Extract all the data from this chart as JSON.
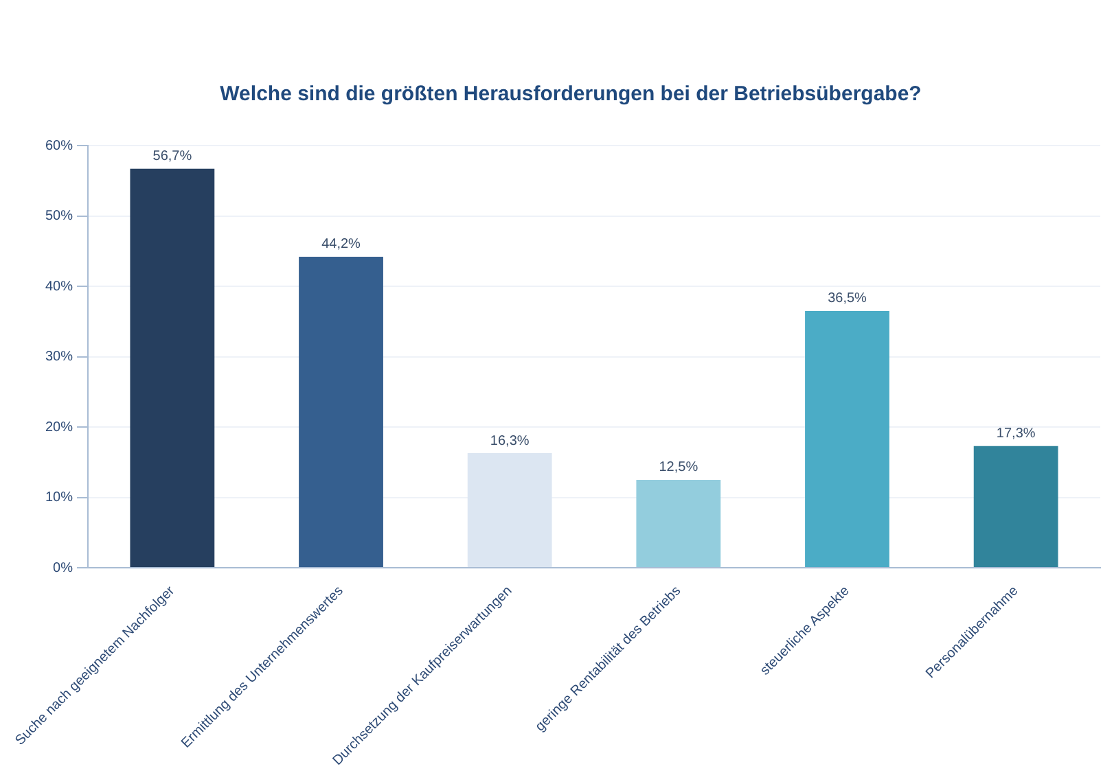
{
  "chart_data": {
    "type": "bar",
    "title": "Welche sind die größten Herausforderungen bei der Betriebsübergabe?",
    "categories": [
      "Suche nach geeignetem Nachfolger",
      "Ermittlung des Unternehmenswertes",
      "Durchsetzung der Kaufpreiserwartungen",
      "geringe Rentabilität des Betriebs",
      "steuerliche Aspekte",
      "Personalübernahme"
    ],
    "values": [
      56.7,
      44.2,
      16.3,
      12.5,
      36.5,
      17.3
    ],
    "colors": [
      "#263f5f",
      "#355f8f",
      "#dce6f2",
      "#93cddd",
      "#4bacc6",
      "#31849b"
    ],
    "value_labels": [
      "56,7%",
      "44,2%",
      "16,3%",
      "12,5%",
      "36,5%",
      "17,3%"
    ],
    "ylim": [
      0,
      60
    ],
    "yticks": [
      {
        "value": 0,
        "label": "0%"
      },
      {
        "value": 10,
        "label": "10%"
      },
      {
        "value": 20,
        "label": "20%"
      },
      {
        "value": 30,
        "label": "30%"
      },
      {
        "value": 40,
        "label": "40%"
      },
      {
        "value": 50,
        "label": "50%"
      },
      {
        "value": 60,
        "label": "60%"
      }
    ],
    "grid": "y"
  }
}
